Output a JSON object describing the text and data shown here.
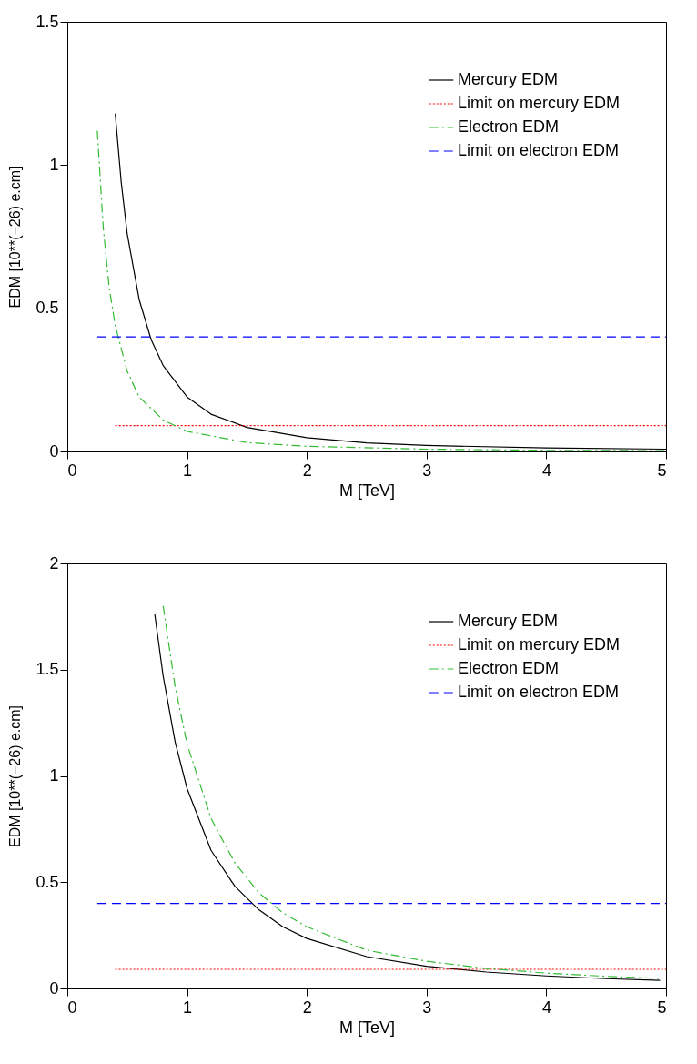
{
  "chart_data": [
    {
      "type": "line",
      "xlabel": "M [TeV]",
      "ylabel": "EDM [10**(−26) e.cm]",
      "xlim": [
        0,
        5
      ],
      "ylim": [
        0,
        1.5
      ],
      "xticks": [
        0,
        1,
        2,
        3,
        4,
        5
      ],
      "yticks": [
        0,
        0.5,
        1,
        1.5
      ],
      "grid": false,
      "legend": "top right",
      "marker": "none",
      "series": [
        {
          "name": "Mercury EDM",
          "color": "#000000",
          "line_style": "solid",
          "x": [
            0.4,
            0.45,
            0.5,
            0.6,
            0.7,
            0.8,
            1,
            1.2,
            1.5,
            2,
            2.5,
            3,
            4,
            5
          ],
          "values": [
            1.18,
            0.94,
            0.76,
            0.53,
            0.39,
            0.3,
            0.19,
            0.13,
            0.084,
            0.048,
            0.03,
            0.021,
            0.012,
            0.008
          ]
        },
        {
          "name": "Limit on mercury EDM",
          "color": "#ff0000",
          "line_style": "dotted",
          "x": [
            0.4,
            5
          ],
          "values": [
            0.09,
            0.09
          ]
        },
        {
          "name": "Electron EDM",
          "color": "#33bb33",
          "line_style": "dashdot",
          "x": [
            0.25,
            0.3,
            0.35,
            0.4,
            0.5,
            0.6,
            0.8,
            1,
            1.5,
            2,
            3,
            4,
            5
          ],
          "values": [
            1.12,
            0.78,
            0.57,
            0.44,
            0.28,
            0.19,
            0.11,
            0.07,
            0.031,
            0.018,
            0.008,
            0.004,
            0.003
          ]
        },
        {
          "name": "Limit on electron EDM",
          "color": "#0000ff",
          "line_style": "dashed",
          "x": [
            0.25,
            5
          ],
          "values": [
            0.4,
            0.4
          ]
        }
      ]
    },
    {
      "type": "line",
      "xlabel": "M [TeV]",
      "ylabel": "EDM [10**(−26) e.cm]",
      "xlim": [
        0,
        5
      ],
      "ylim": [
        0,
        2
      ],
      "xticks": [
        0,
        1,
        2,
        3,
        4,
        5
      ],
      "yticks": [
        0,
        0.5,
        1,
        1.5,
        2
      ],
      "grid": false,
      "legend": "top right",
      "marker": "none",
      "series": [
        {
          "name": "Mercury EDM",
          "color": "#000000",
          "line_style": "solid",
          "x": [
            0.73,
            0.8,
            0.9,
            1,
            1.2,
            1.4,
            1.6,
            1.8,
            2,
            2.5,
            3,
            3.5,
            4,
            4.5,
            4.95
          ],
          "values": [
            1.76,
            1.47,
            1.16,
            0.94,
            0.65,
            0.48,
            0.37,
            0.29,
            0.235,
            0.15,
            0.104,
            0.077,
            0.059,
            0.046,
            0.038
          ]
        },
        {
          "name": "Limit on mercury EDM",
          "color": "#ff0000",
          "line_style": "dotted",
          "x": [
            0.4,
            5
          ],
          "values": [
            0.09,
            0.09
          ]
        },
        {
          "name": "Electron EDM",
          "color": "#33bb33",
          "line_style": "dashdot",
          "x": [
            0.8,
            0.9,
            1,
            1.2,
            1.4,
            1.6,
            1.8,
            2,
            2.5,
            3,
            3.5,
            4,
            4.5,
            4.95
          ],
          "values": [
            1.8,
            1.42,
            1.15,
            0.8,
            0.59,
            0.45,
            0.355,
            0.29,
            0.18,
            0.128,
            0.094,
            0.072,
            0.057,
            0.047
          ]
        },
        {
          "name": "Limit on electron EDM",
          "color": "#0000ff",
          "line_style": "dashed",
          "x": [
            0.25,
            5
          ],
          "values": [
            0.4,
            0.4
          ]
        }
      ]
    }
  ]
}
